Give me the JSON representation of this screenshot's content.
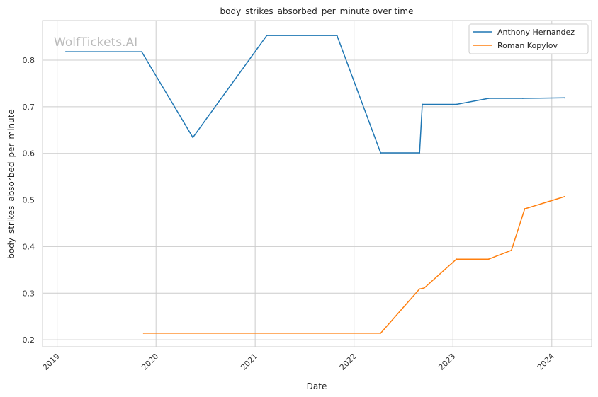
{
  "watermark": "WolfTickets.AI",
  "chart_data": {
    "type": "line",
    "title": "body_strikes_absorbed_per_minute over time",
    "xlabel": "Date",
    "ylabel": "body_strikes_absorbed_per_minute",
    "x_ticks": [
      "2019",
      "2020",
      "2021",
      "2022",
      "2023",
      "2024"
    ],
    "y_ticks": [
      "0.2",
      "0.3",
      "0.4",
      "0.5",
      "0.6",
      "0.7",
      "0.8"
    ],
    "xlim": [
      "2018-11-08",
      "2024-05-27"
    ],
    "ylim": [
      0.185,
      0.885
    ],
    "grid": true,
    "legend_position": "top-right",
    "series": [
      {
        "name": "Anthony Hernandez",
        "color": "#1f77b4",
        "points": [
          {
            "x": "2019-02-02",
            "y": 0.818
          },
          {
            "x": "2019-11-09",
            "y": 0.818
          },
          {
            "x": "2020-05-16",
            "y": 0.634
          },
          {
            "x": "2021-02-13",
            "y": 0.853
          },
          {
            "x": "2021-10-30",
            "y": 0.853
          },
          {
            "x": "2022-04-09",
            "y": 0.601
          },
          {
            "x": "2022-08-31",
            "y": 0.601
          },
          {
            "x": "2022-09-10",
            "y": 0.705
          },
          {
            "x": "2023-01-14",
            "y": 0.705
          },
          {
            "x": "2023-05-13",
            "y": 0.718
          },
          {
            "x": "2023-09-16",
            "y": 0.718
          },
          {
            "x": "2024-02-17",
            "y": 0.719
          }
        ]
      },
      {
        "name": "Roman Kopylov",
        "color": "#ff7f0e",
        "points": [
          {
            "x": "2019-11-16",
            "y": 0.214
          },
          {
            "x": "2022-04-09",
            "y": 0.214
          },
          {
            "x": "2022-08-31",
            "y": 0.309
          },
          {
            "x": "2022-09-17",
            "y": 0.311
          },
          {
            "x": "2023-01-14",
            "y": 0.373
          },
          {
            "x": "2023-05-13",
            "y": 0.373
          },
          {
            "x": "2023-08-05",
            "y": 0.392
          },
          {
            "x": "2023-09-23",
            "y": 0.481
          },
          {
            "x": "2024-02-17",
            "y": 0.507
          }
        ]
      }
    ]
  }
}
